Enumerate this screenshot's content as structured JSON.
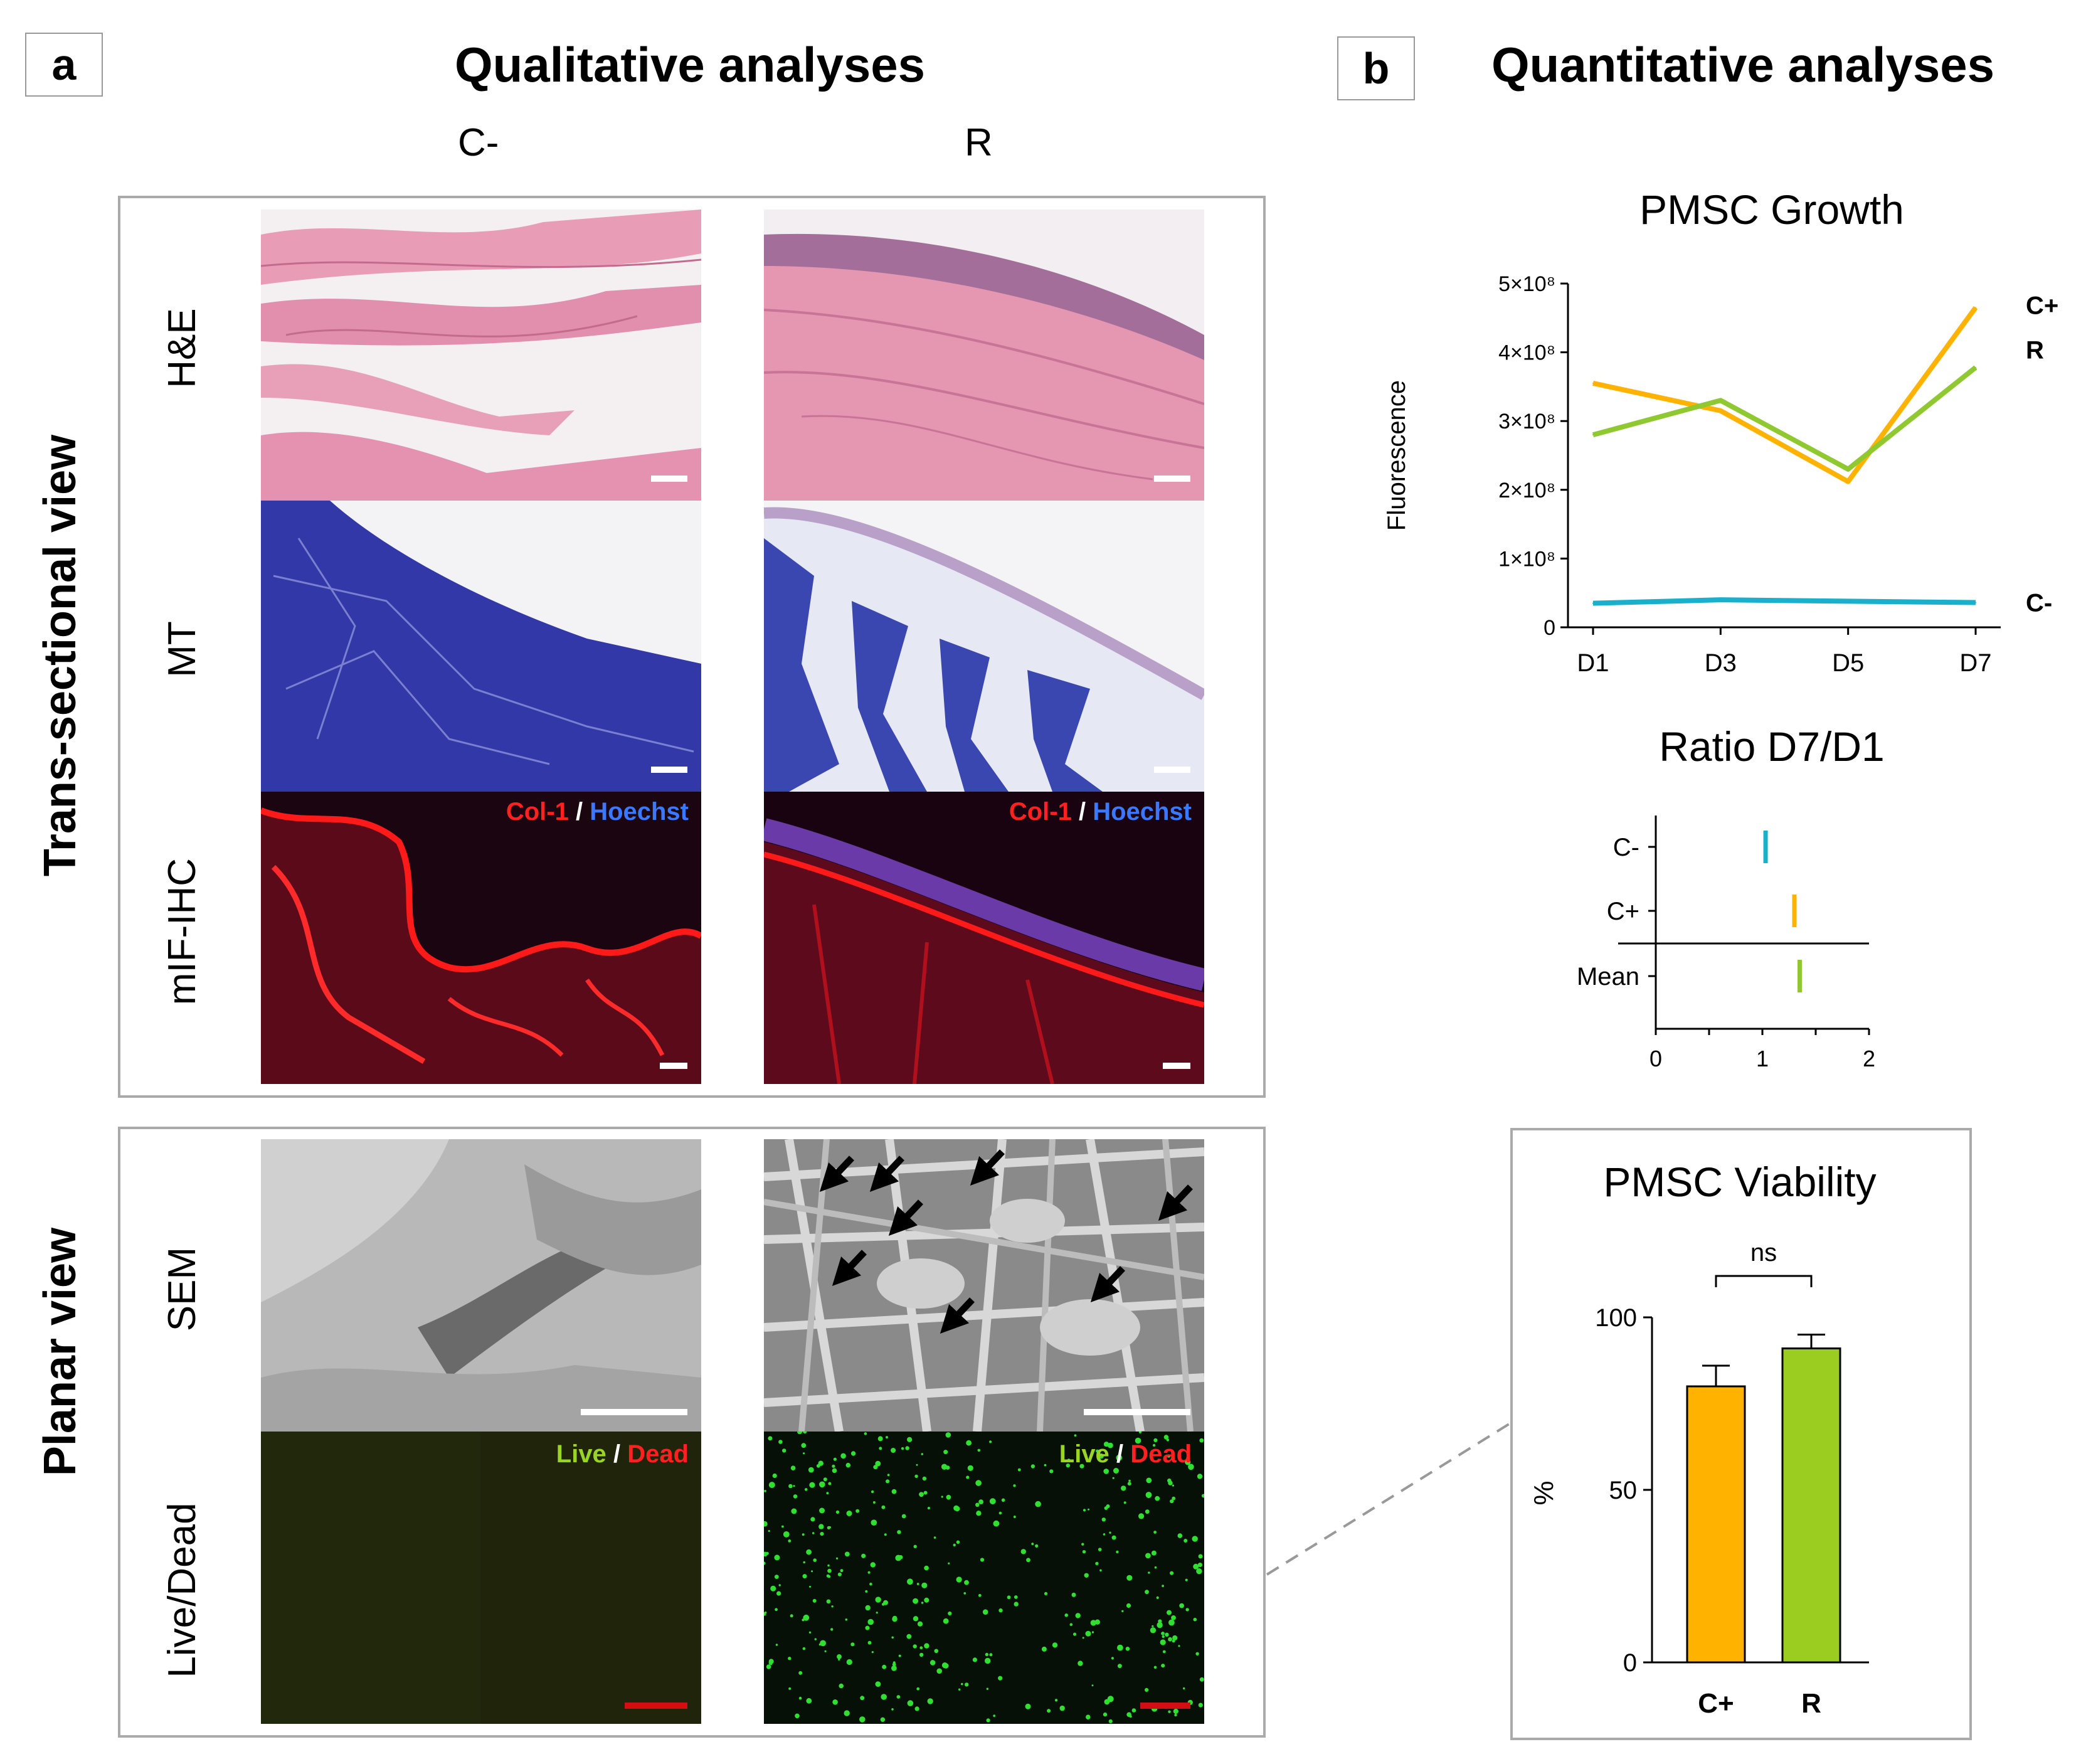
{
  "panel_a": {
    "letter": "a",
    "title": "Qualitative analyses",
    "col_left": "C-",
    "col_right": "R",
    "section_trans": "Trans-sectional view",
    "section_planar": "Planar view",
    "rows": {
      "he": "H&E",
      "mt": "MT",
      "mif": "mIF-IHC",
      "sem": "SEM",
      "livedead": "Live/Dead"
    },
    "overlay": {
      "col1": "Col-1",
      "slash": "/",
      "hoechst": "Hoechst",
      "live": "Live",
      "dead": "Dead"
    }
  },
  "panel_b": {
    "letter": "b",
    "title": "Quantitative analyses"
  },
  "colors": {
    "c_minus": "#1ab0cc",
    "c_plus": "#ffb300",
    "r": "#8fc830",
    "red": "#ff2020",
    "blue": "#3a78ff",
    "green_label": "#9ad428"
  },
  "chart_data": [
    {
      "type": "line",
      "title": "PMSC Growth",
      "ylabel": "Fluorescence",
      "categories": [
        "D1",
        "D3",
        "D5",
        "D7"
      ],
      "ylim": [
        0,
        500000000
      ],
      "yticks": [
        "0",
        "1×10⁸",
        "2×10⁸",
        "3×10⁸",
        "4×10⁸",
        "5×10⁸"
      ],
      "series": [
        {
          "name": "C+",
          "values": [
            355000000,
            315000000,
            212000000,
            465000000
          ],
          "color": "#ffb300"
        },
        {
          "name": "R",
          "values": [
            280000000,
            330000000,
            230000000,
            378000000
          ],
          "color": "#8fc830"
        },
        {
          "name": "C-",
          "values": [
            35000000,
            40000000,
            38000000,
            36000000
          ],
          "color": "#1ab0cc"
        }
      ]
    },
    {
      "type": "scatter",
      "title": "Ratio D7/D1",
      "categories": [
        "C-",
        "C+",
        "Mean"
      ],
      "values": [
        1.03,
        1.3,
        1.35
      ],
      "colors": [
        "#1ab0cc",
        "#ffb300",
        "#8fc830"
      ],
      "xlim": [
        0,
        2
      ],
      "xticks": [
        "0",
        "1",
        "2"
      ]
    },
    {
      "type": "bar",
      "title": "PMSC Viability",
      "ylabel": "%",
      "categories": [
        "C+",
        "R"
      ],
      "values": [
        80,
        91
      ],
      "errors": [
        6,
        4
      ],
      "colors": [
        "#ffb300",
        "#9acd20"
      ],
      "ylim": [
        0,
        100
      ],
      "yticks": [
        "0",
        "50",
        "100"
      ],
      "significance": "ns"
    }
  ]
}
